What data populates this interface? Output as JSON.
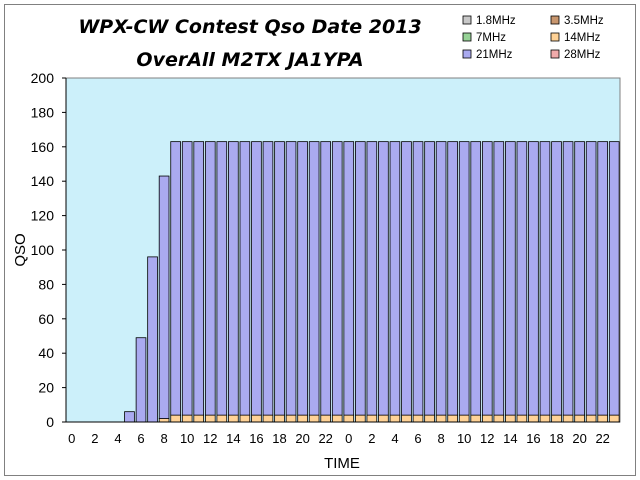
{
  "chart_data": {
    "type": "bar",
    "stacked": true,
    "title": "WPX-CW Contest Qso Date 2013",
    "subtitle": "OverAll M2TX JA1YPA",
    "xlabel": "TIME",
    "ylabel": "QSO",
    "ylim": [
      0,
      200
    ],
    "yticks": [
      "0",
      "20",
      "40",
      "60",
      "80",
      "100",
      "120",
      "140",
      "160",
      "180",
      "200"
    ],
    "categories": [
      "0",
      "1",
      "2",
      "3",
      "4",
      "5",
      "6",
      "7",
      "8",
      "9",
      "10",
      "11",
      "12",
      "13",
      "14",
      "15",
      "16",
      "17",
      "18",
      "19",
      "20",
      "21",
      "22",
      "23",
      "0",
      "1",
      "2",
      "3",
      "4",
      "5",
      "6",
      "7",
      "8",
      "9",
      "10",
      "11",
      "12",
      "13",
      "14",
      "15",
      "16",
      "17",
      "18",
      "19",
      "20",
      "21",
      "22",
      "23"
    ],
    "xtick_labels": [
      "0",
      "2",
      "4",
      "6",
      "8",
      "10",
      "12",
      "14",
      "16",
      "18",
      "20",
      "22",
      "0",
      "2",
      "4",
      "6",
      "8",
      "10",
      "12",
      "14",
      "16",
      "18",
      "20",
      "22"
    ],
    "series": [
      {
        "name": "1.8MHz",
        "color": "#c8c8c8",
        "values": [
          0,
          0,
          0,
          0,
          0,
          0,
          0,
          0,
          0,
          0,
          0,
          0,
          0,
          0,
          0,
          0,
          0,
          0,
          0,
          0,
          0,
          0,
          0,
          0,
          0,
          0,
          0,
          0,
          0,
          0,
          0,
          0,
          0,
          0,
          0,
          0,
          0,
          0,
          0,
          0,
          0,
          0,
          0,
          0,
          0,
          0,
          0,
          0
        ]
      },
      {
        "name": "3.5MHz",
        "color": "#c8966e",
        "values": [
          0,
          0,
          0,
          0,
          0,
          0,
          0,
          0,
          0,
          0,
          0,
          0,
          0,
          0,
          0,
          0,
          0,
          0,
          0,
          0,
          0,
          0,
          0,
          0,
          0,
          0,
          0,
          0,
          0,
          0,
          0,
          0,
          0,
          0,
          0,
          0,
          0,
          0,
          0,
          0,
          0,
          0,
          0,
          0,
          0,
          0,
          0,
          0
        ]
      },
      {
        "name": "7MHz",
        "color": "#96d296",
        "values": [
          0,
          0,
          0,
          0,
          0,
          0,
          0,
          0,
          0,
          0,
          0,
          0,
          0,
          0,
          0,
          0,
          0,
          0,
          0,
          0,
          0,
          0,
          0,
          0,
          0,
          0,
          0,
          0,
          0,
          0,
          0,
          0,
          0,
          0,
          0,
          0,
          0,
          0,
          0,
          0,
          0,
          0,
          0,
          0,
          0,
          0,
          0,
          0
        ]
      },
      {
        "name": "14MHz",
        "color": "#ffd296",
        "values": [
          0,
          0,
          0,
          0,
          0,
          0,
          0,
          0,
          2,
          4,
          4,
          4,
          4,
          4,
          4,
          4,
          4,
          4,
          4,
          4,
          4,
          4,
          4,
          4,
          4,
          4,
          4,
          4,
          4,
          4,
          4,
          4,
          4,
          4,
          4,
          4,
          4,
          4,
          4,
          4,
          4,
          4,
          4,
          4,
          4,
          4,
          4,
          4
        ]
      },
      {
        "name": "21MHz",
        "color": "#aaaaf0",
        "values": [
          0,
          0,
          0,
          0,
          0,
          6,
          49,
          96,
          141,
          159,
          159,
          159,
          159,
          159,
          159,
          159,
          159,
          159,
          159,
          159,
          159,
          159,
          159,
          159,
          159,
          159,
          159,
          159,
          159,
          159,
          159,
          159,
          159,
          159,
          159,
          159,
          159,
          159,
          159,
          159,
          159,
          159,
          159,
          159,
          159,
          159,
          159,
          159
        ]
      },
      {
        "name": "28MHz",
        "color": "#f0aaaa",
        "values": [
          0,
          0,
          0,
          0,
          0,
          0,
          0,
          0,
          0,
          0,
          0,
          0,
          0,
          0,
          0,
          0,
          0,
          0,
          0,
          0,
          0,
          0,
          0,
          0,
          0,
          0,
          0,
          0,
          0,
          0,
          0,
          0,
          0,
          0,
          0,
          0,
          0,
          0,
          0,
          0,
          0,
          0,
          0,
          0,
          0,
          0,
          0,
          0
        ]
      }
    ],
    "grid": false,
    "legend_position": "top-right",
    "plot_background": "#ccf0fa"
  }
}
